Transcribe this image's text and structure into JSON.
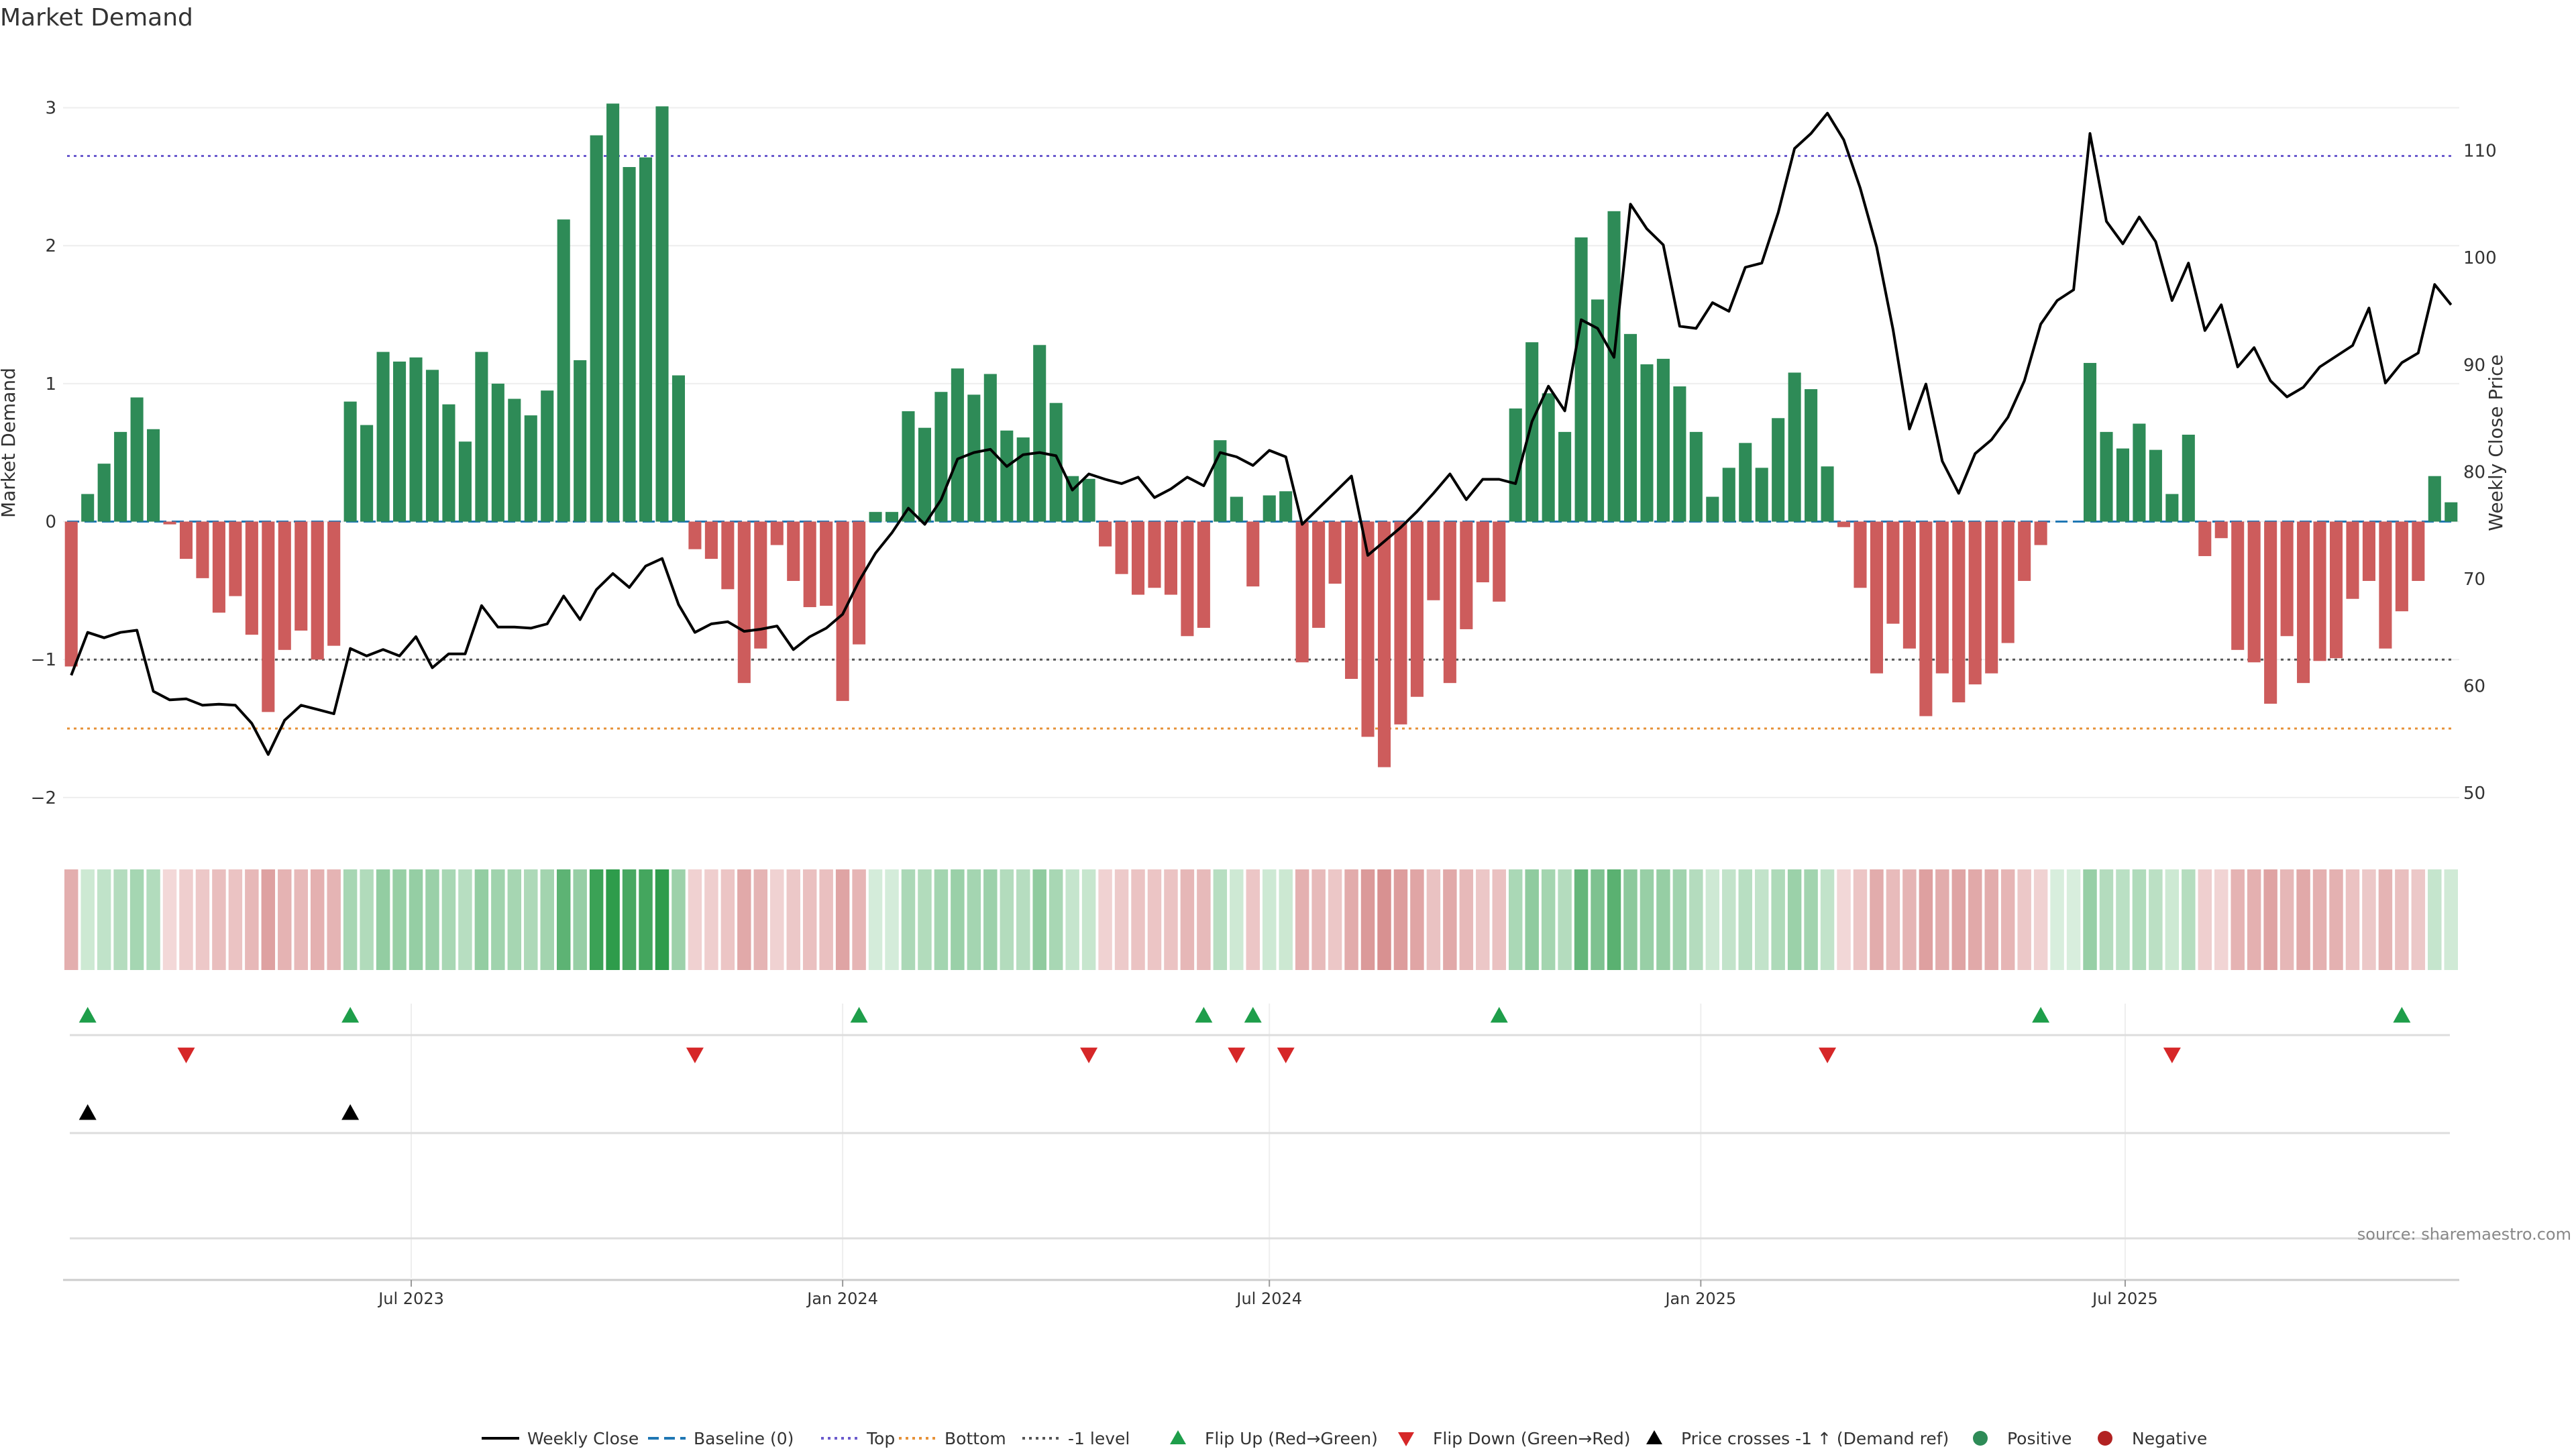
{
  "chart_data": {
    "type": "bar",
    "title": "Market Demand",
    "ylabel_left": "Market Demand",
    "ylabel_right": "Weekly Close Price",
    "ylim_left": [
      -2.2,
      3.1
    ],
    "ylim_right": [
      47.0,
      115.3
    ],
    "yticks_left": [
      -2,
      -1,
      0,
      1,
      2,
      3
    ],
    "yticks_left_labels": [
      "−2",
      "−1",
      "0",
      "1",
      "2",
      "3"
    ],
    "yticks_right": [
      50,
      60,
      70,
      80,
      90,
      100,
      110
    ],
    "yticks_right_labels": [
      "50",
      "60",
      "70",
      "80",
      "90",
      "100",
      "110"
    ],
    "levels": {
      "top": 2.65,
      "bottom": -1.5,
      "minus_one": -1.0,
      "baseline": 0
    },
    "date_range": [
      "2023-02-06",
      "2025-11-17"
    ],
    "x_ticks": [
      {
        "date": "2023-07-01",
        "label": "Jul 2023"
      },
      {
        "date": "2024-01-01",
        "label": "Jan 2024"
      },
      {
        "date": "2024-07-01",
        "label": "Jul 2024"
      },
      {
        "date": "2025-01-01",
        "label": "Jan 2025"
      },
      {
        "date": "2025-07-01",
        "label": "Jul 2025"
      }
    ],
    "demand_values": [
      -1.05,
      0.2,
      0.42,
      0.65,
      0.9,
      0.67,
      -0.02,
      -0.27,
      -0.41,
      -0.66,
      -0.54,
      -0.82,
      -1.38,
      -0.93,
      -0.79,
      -1.0,
      -0.9,
      0.87,
      0.7,
      1.23,
      1.16,
      1.19,
      1.1,
      0.85,
      0.58,
      1.23,
      1.0,
      0.89,
      0.77,
      0.95,
      2.19,
      1.17,
      2.8,
      3.03,
      2.57,
      2.64,
      3.01,
      1.06,
      -0.2,
      -0.27,
      -0.49,
      -1.17,
      -0.92,
      -0.17,
      -0.43,
      -0.62,
      -0.61,
      -1.3,
      -0.89,
      0.07,
      0.07,
      0.8,
      0.68,
      0.94,
      1.11,
      0.92,
      1.07,
      0.66,
      0.61,
      1.28,
      0.86,
      0.33,
      0.31,
      -0.18,
      -0.38,
      -0.53,
      -0.48,
      -0.53,
      -0.83,
      -0.77,
      0.59,
      0.18,
      -0.47,
      0.19,
      0.22,
      -1.02,
      -0.77,
      -0.45,
      -1.14,
      -1.56,
      -1.78,
      -1.47,
      -1.27,
      -0.57,
      -1.17,
      -0.78,
      -0.44,
      -0.58,
      0.82,
      1.3,
      0.93,
      0.65,
      2.06,
      1.61,
      2.25,
      1.36,
      1.14,
      1.18,
      0.98,
      0.65,
      0.18,
      0.39,
      0.57,
      0.39,
      0.75,
      1.08,
      0.96,
      0.4,
      -0.04,
      -0.48,
      -1.1,
      -0.74,
      -0.92,
      -1.41,
      -1.1,
      -1.31,
      -1.18,
      -1.1,
      -0.88,
      -0.43,
      -0.17,
      0.0,
      0.0,
      1.15,
      0.65,
      0.53,
      0.71,
      0.52,
      0.2,
      0.63,
      -0.25,
      -0.12,
      -0.93,
      -1.02,
      -1.32,
      -0.83,
      -1.17,
      -1.01,
      -0.99,
      -0.56,
      -0.43,
      -0.92,
      -0.65,
      -0.43,
      0.33,
      0.14
    ],
    "close_values": [
      61.0,
      65.0,
      64.5,
      65.0,
      65.2,
      59.5,
      58.7,
      58.8,
      58.2,
      58.3,
      58.2,
      56.5,
      53.6,
      56.8,
      58.2,
      57.8,
      57.4,
      63.5,
      62.8,
      63.4,
      62.8,
      64.6,
      61.7,
      63.0,
      63.0,
      67.5,
      65.5,
      65.5,
      65.4,
      65.8,
      68.4,
      66.2,
      69.0,
      70.5,
      69.2,
      71.2,
      71.9,
      67.6,
      65.0,
      65.8,
      66.0,
      65.1,
      65.3,
      65.6,
      63.4,
      64.6,
      65.4,
      66.7,
      69.8,
      72.4,
      74.3,
      76.6,
      75.1,
      77.4,
      81.2,
      81.8,
      82.1,
      80.5,
      81.6,
      81.8,
      81.5,
      78.3,
      79.8,
      79.3,
      78.9,
      79.5,
      77.6,
      78.4,
      79.5,
      78.7,
      81.8,
      81.4,
      80.6,
      82.0,
      81.4,
      75.1,
      76.6,
      78.1,
      79.6,
      72.2,
      73.5,
      74.8,
      76.3,
      78.0,
      79.8,
      77.4,
      79.3,
      79.3,
      78.9,
      84.7,
      88.0,
      85.7,
      94.2,
      93.4,
      90.7,
      105.0,
      102.7,
      101.2,
      93.6,
      93.4,
      95.8,
      95.0,
      99.1,
      99.5,
      104.2,
      110.2,
      111.6,
      113.5,
      111.0,
      106.5,
      101.0,
      93.3,
      84.0,
      88.2,
      81.0,
      78.0,
      81.7,
      83.0,
      85.1,
      88.5,
      93.8,
      96.0,
      97.0,
      111.6,
      103.4,
      101.3,
      103.8,
      101.5,
      96.0,
      99.5,
      93.2,
      95.6,
      89.8,
      91.6,
      88.5,
      87.0,
      87.9,
      89.8,
      90.8,
      91.8,
      95.3,
      88.3,
      90.2,
      91.1,
      97.5,
      95.6
    ],
    "flip_up_indices": [
      1,
      17,
      48,
      69,
      72,
      87,
      120,
      142
    ],
    "flip_down_indices": [
      7,
      38,
      62,
      71,
      74,
      107,
      128
    ],
    "price_cross_indices": [
      1,
      17
    ],
    "bars_legend": [
      {
        "name": "Positive",
        "color": "#2e8b57"
      },
      {
        "name": "Negative",
        "color": "#cd5c5c"
      }
    ],
    "legend_entries": [
      {
        "label": "Weekly Close",
        "style": "line",
        "color": "#000000"
      },
      {
        "label": "Baseline (0)",
        "style": "dash",
        "color": "#1f77b4"
      },
      {
        "label": "Top",
        "style": "dot",
        "color": "#6a5acd"
      },
      {
        "label": "Bottom",
        "style": "dot",
        "color": "#e69138"
      },
      {
        "label": "-1 level",
        "style": "dot",
        "color": "#555555"
      },
      {
        "label": "Flip Up (Red→Green)",
        "style": "tri-up",
        "color": "#1e9e4a"
      },
      {
        "label": "Flip Down (Green→Red)",
        "style": "tri-down",
        "color": "#d62728"
      },
      {
        "label": "Price crosses -1 ↑ (Demand ref)",
        "style": "tri-up",
        "color": "#000000"
      },
      {
        "label": "Positive",
        "style": "dot-circle",
        "color": "#2e8b57"
      },
      {
        "label": "Negative",
        "style": "dot-circle",
        "color": "#b22222"
      }
    ],
    "source_note": "source: sharemaestro.com"
  },
  "colors": {
    "positive_bar": "#2e8b57",
    "negative_bar": "#cd5c5c",
    "price_line": "#000000",
    "baseline": "#1f77b4",
    "top_line": "#6a5acd",
    "bottom_line": "#e69138",
    "minus_one_line": "#555555",
    "flip_up": "#1e9e4a",
    "flip_down": "#d62728",
    "cross_marker": "#000000"
  }
}
